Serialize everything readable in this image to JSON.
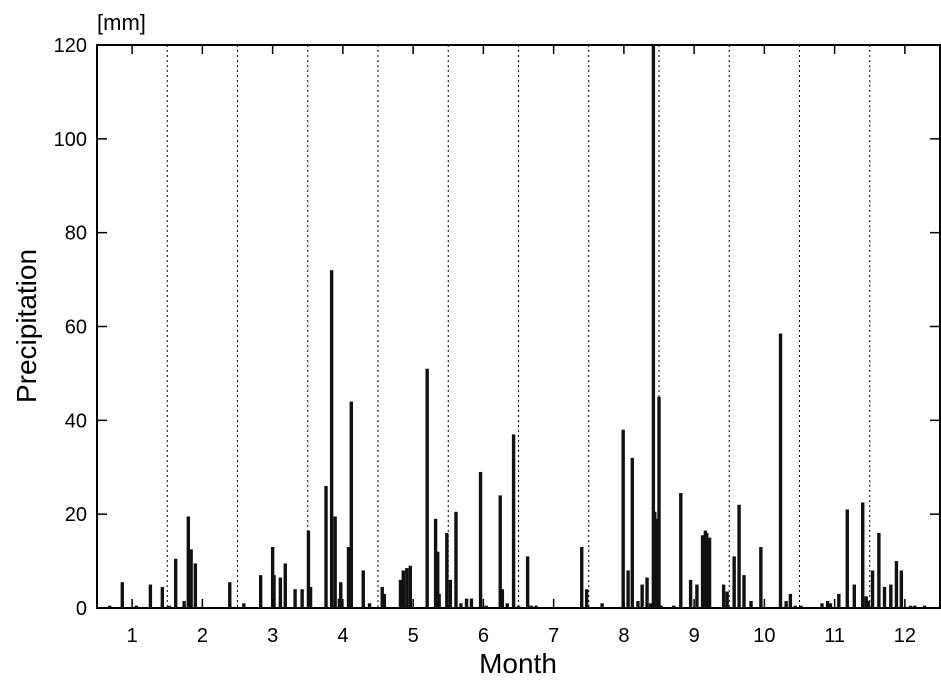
{
  "chart_data": {
    "type": "bar",
    "title": "",
    "xlabel": "Month",
    "ylabel": "Precipitation",
    "unit_label": "[mm]",
    "ylim": [
      0,
      120
    ],
    "xlim": [
      0.5,
      12.5
    ],
    "yticks": [
      0,
      20,
      40,
      60,
      80,
      100,
      120
    ],
    "yticklabels": [
      "0",
      "20",
      "40",
      "60",
      "80",
      "100",
      "120"
    ],
    "xticks": [
      1,
      2,
      3,
      4,
      5,
      6,
      7,
      8,
      9,
      10,
      11,
      12
    ],
    "xticklabels": [
      "1",
      "2",
      "3",
      "4",
      "5",
      "6",
      "7",
      "8",
      "9",
      "10",
      "11",
      "12"
    ],
    "month_separators": [
      1.5,
      2.5,
      3.5,
      4.5,
      5.5,
      6.5,
      7.5,
      8.5,
      9.5,
      10.5,
      11.5
    ],
    "grid": "vertical dotted month boundaries",
    "bar_color": "#111111",
    "x": [
      0.68,
      0.86,
      1.06,
      1.26,
      1.43,
      1.53,
      1.62,
      1.74,
      1.8,
      1.84,
      1.9,
      2.39,
      2.59,
      2.83,
      3.0,
      3.02,
      3.11,
      3.18,
      3.32,
      3.42,
      3.51,
      3.54,
      3.76,
      3.84,
      3.89,
      3.95,
      3.97,
      4.08,
      4.12,
      4.29,
      4.38,
      4.56,
      4.59,
      4.82,
      4.86,
      4.91,
      4.96,
      5.2,
      5.32,
      5.35,
      5.37,
      5.48,
      5.53,
      5.61,
      5.68,
      5.76,
      5.83,
      5.96,
      6.04,
      6.24,
      6.27,
      6.34,
      6.43,
      6.5,
      6.63,
      6.68,
      6.75,
      7.4,
      7.47,
      7.69,
      7.99,
      8.06,
      8.12,
      8.2,
      8.26,
      8.33,
      8.38,
      8.42,
      8.44,
      8.47,
      8.5,
      8.53,
      8.71,
      8.81,
      8.95,
      9.04,
      9.12,
      9.16,
      9.18,
      9.22,
      9.42,
      9.47,
      9.57,
      9.64,
      9.71,
      9.81,
      9.95,
      10.23,
      10.31,
      10.37,
      10.44,
      10.52,
      10.82,
      10.9,
      10.94,
      11.06,
      11.18,
      11.28,
      11.4,
      11.45,
      11.48,
      11.54,
      11.63,
      11.71,
      11.8,
      11.88,
      11.95,
      12.08,
      12.14,
      12.28
    ]
  },
  "bar_values": [
    0.5,
    5.5,
    0.5,
    5.0,
    4.5,
    0.5,
    10.5,
    1.5,
    19.5,
    12.5,
    9.5,
    5.5,
    1.0,
    7.0,
    13.0,
    7.0,
    6.5,
    9.5,
    4.0,
    4.0,
    16.5,
    4.5,
    26.0,
    72.0,
    19.5,
    2.0,
    5.5,
    13.0,
    44.0,
    8.0,
    1.0,
    4.5,
    3.0,
    6.0,
    8.0,
    8.5,
    9.0,
    51.0,
    19.0,
    12.0,
    3.0,
    16.0,
    6.0,
    20.5,
    1.0,
    2.0,
    2.0,
    29.0,
    0.5,
    24.0,
    4.0,
    1.0,
    37.0,
    0.5,
    11.0,
    0.5,
    0.5,
    13.0,
    4.0,
    1.0,
    38.0,
    8.0,
    32.0,
    1.5,
    5.0,
    6.5,
    1.0,
    120.0,
    20.5,
    19.0,
    45.0,
    0.5,
    0.5,
    24.5,
    6.0,
    5.0,
    15.5,
    16.5,
    16.0,
    15.0,
    5.0,
    3.5,
    11.0,
    22.0,
    7.0,
    1.5,
    13.0,
    58.5,
    1.5,
    3.0,
    0.5,
    0.5,
    1.0,
    1.5,
    1.0,
    3.0,
    21.0,
    5.0,
    22.5,
    2.5,
    1.5,
    8.0,
    16.0,
    4.5,
    5.0,
    10.0,
    8.0,
    0.5,
    0.5,
    0.5
  ]
}
